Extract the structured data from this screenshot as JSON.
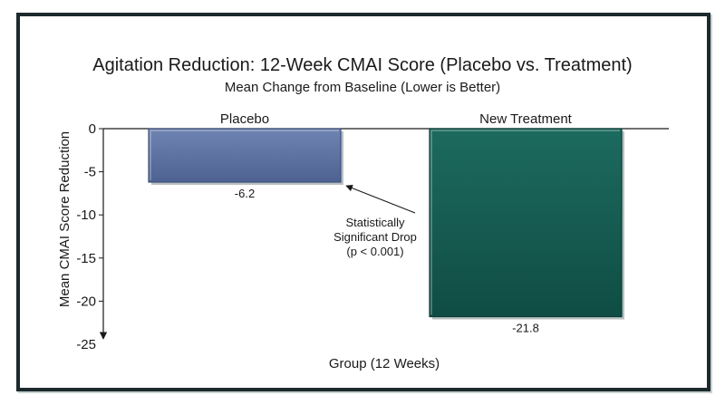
{
  "chart_data": {
    "type": "bar",
    "title": "Agitation Reduction: 12-Week CMAI Score (Placebo vs. Treatment)",
    "subtitle": "Mean Change from Baseline (Lower is Better)",
    "xlabel": "Group (12 Weeks)",
    "ylabel": "Mean CMAI Score Reduction",
    "categories": [
      "Placebo",
      "New Treatment"
    ],
    "values": [
      -6.2,
      -21.8
    ],
    "data_labels": [
      "-6.2",
      "-21.8"
    ],
    "ylim": [
      -25,
      0
    ],
    "yticks": [
      0,
      -5,
      -10,
      -15,
      -20,
      -25
    ],
    "grid": false,
    "colors": [
      "#5a70a0",
      "#145a50"
    ],
    "annotation": {
      "lines": [
        "Statistically",
        "Significant Drop",
        "(p < 0.001)"
      ],
      "target": "Placebo"
    }
  }
}
